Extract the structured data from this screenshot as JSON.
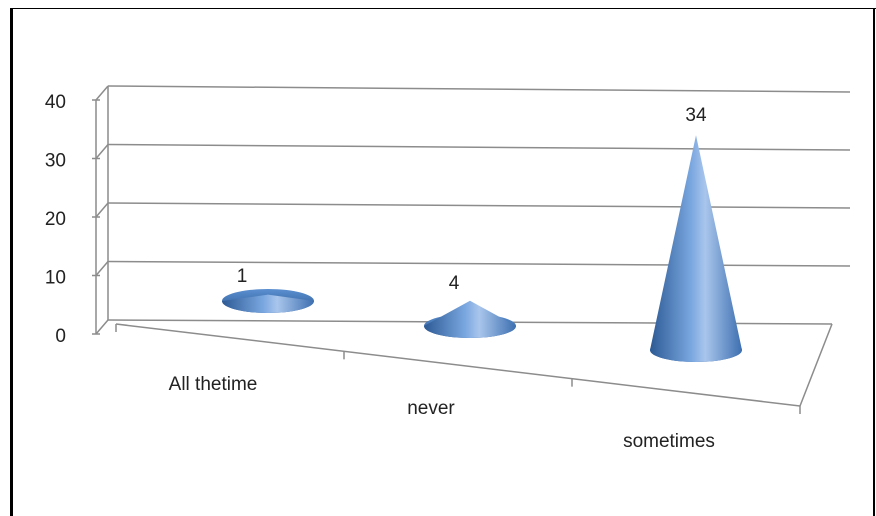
{
  "chart_data": {
    "type": "bar",
    "style": "3d-cone",
    "categories": [
      "All thetime",
      "never",
      "sometimes"
    ],
    "values": [
      1,
      4,
      34
    ],
    "data_labels": [
      "1",
      "4",
      "34"
    ],
    "ylim": [
      0,
      40
    ],
    "yticks": [
      "0",
      "10",
      "20",
      "30",
      "40"
    ],
    "grid": true,
    "legend": "none",
    "colors": {
      "cone": "#4f81bd",
      "cone_light": "#a9c6ec",
      "cone_dark": "#2d5a94",
      "grid": "#8c8c8c"
    }
  }
}
